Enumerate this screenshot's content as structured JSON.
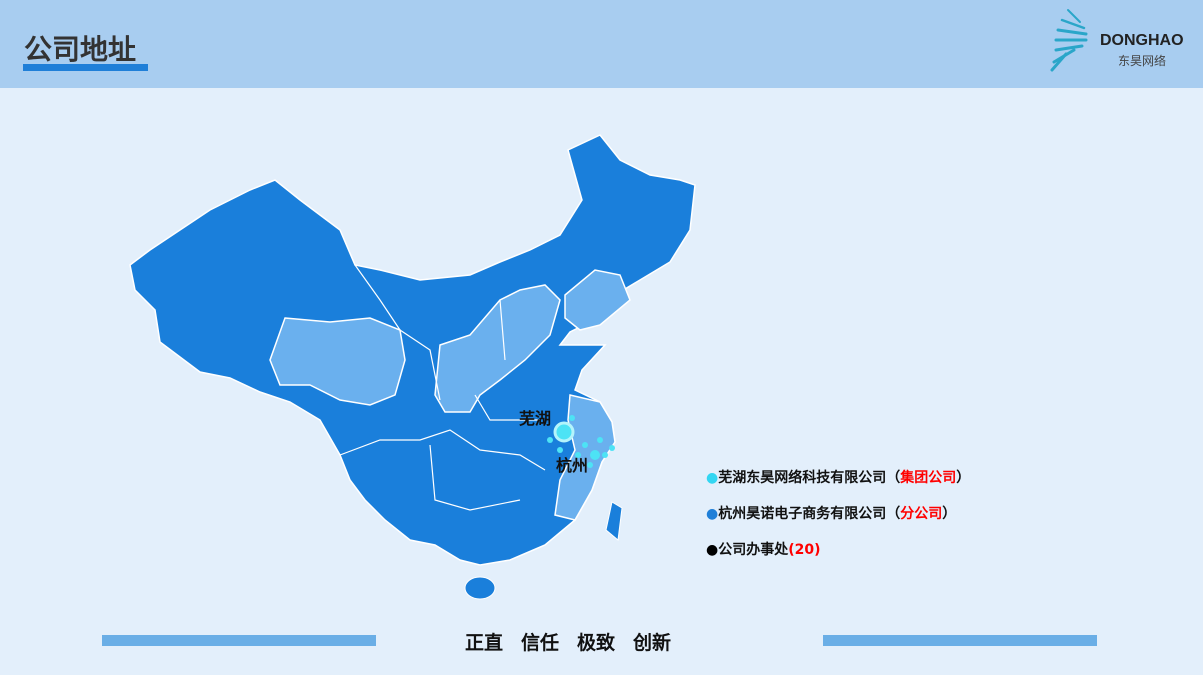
{
  "header": {
    "title": "公司地址",
    "logo_en": "DONGHAO",
    "logo_cn": "东昊网络"
  },
  "map": {
    "cities": [
      {
        "name": "芜湖"
      },
      {
        "name": "杭州"
      }
    ],
    "colors": {
      "province": "#1a7fdb",
      "highlight": "#6ab0ee",
      "border": "#ffffff",
      "marker": "#4de3f5"
    }
  },
  "legend": [
    {
      "dot_color": "#33d6f2",
      "text": "芜湖东昊网络科技有限公司（",
      "highlight": "集团公司",
      "suffix": "）"
    },
    {
      "dot_color": "#1f7fd8",
      "text": "杭州昊诺电子商务有限公司（",
      "highlight": "分公司",
      "suffix": "）"
    },
    {
      "dot_color": "#000000",
      "text": "公司办事处",
      "highlight": "(20)",
      "suffix": ""
    }
  ],
  "footer": {
    "values": [
      "正直",
      "信任",
      "极致",
      "创新"
    ]
  }
}
